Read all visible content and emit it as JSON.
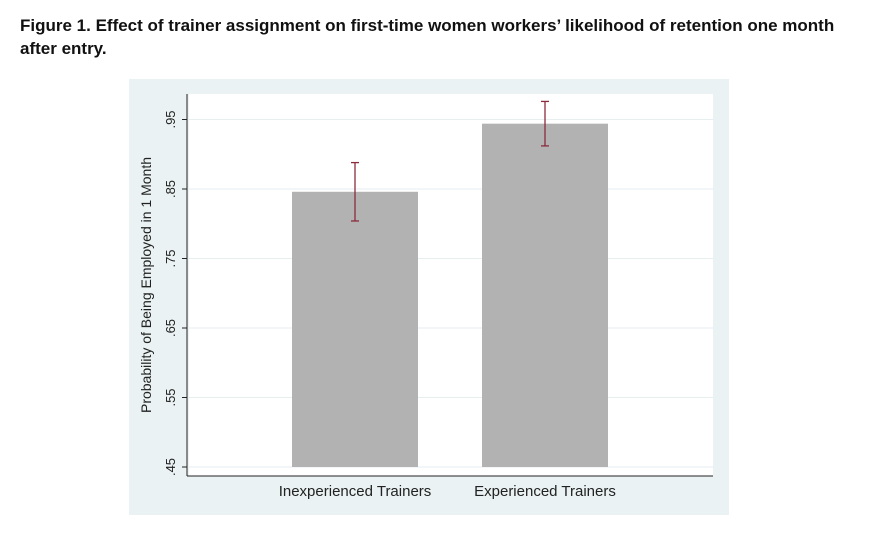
{
  "caption": {
    "title": "Figure 1.  Effect of trainer assignment on first-time women workers’ likelihood of retention one month after entry."
  },
  "chart_data": {
    "type": "bar",
    "categories": [
      "Inexperienced Trainers",
      "Experienced Trainers"
    ],
    "values": [
      0.846,
      0.944
    ],
    "error_low": [
      0.804,
      0.912
    ],
    "error_high": [
      0.888,
      0.976
    ],
    "ylabel": "Probability of Being Employed in 1 Month",
    "xlabel": "",
    "ylim": [
      0.45,
      0.99
    ],
    "yticks": [
      0.45,
      0.55,
      0.65,
      0.75,
      0.85,
      0.95
    ],
    "ytick_labels": [
      ".45",
      ".55",
      ".65",
      ".75",
      ".85",
      ".95"
    ],
    "grid": true,
    "colors": {
      "bar": "#b2b2b2",
      "error_bar": "#8b2c3c",
      "panel_background": "#eaf2f3",
      "plot_background": "#ffffff",
      "gridline": "#e6eef0"
    }
  }
}
